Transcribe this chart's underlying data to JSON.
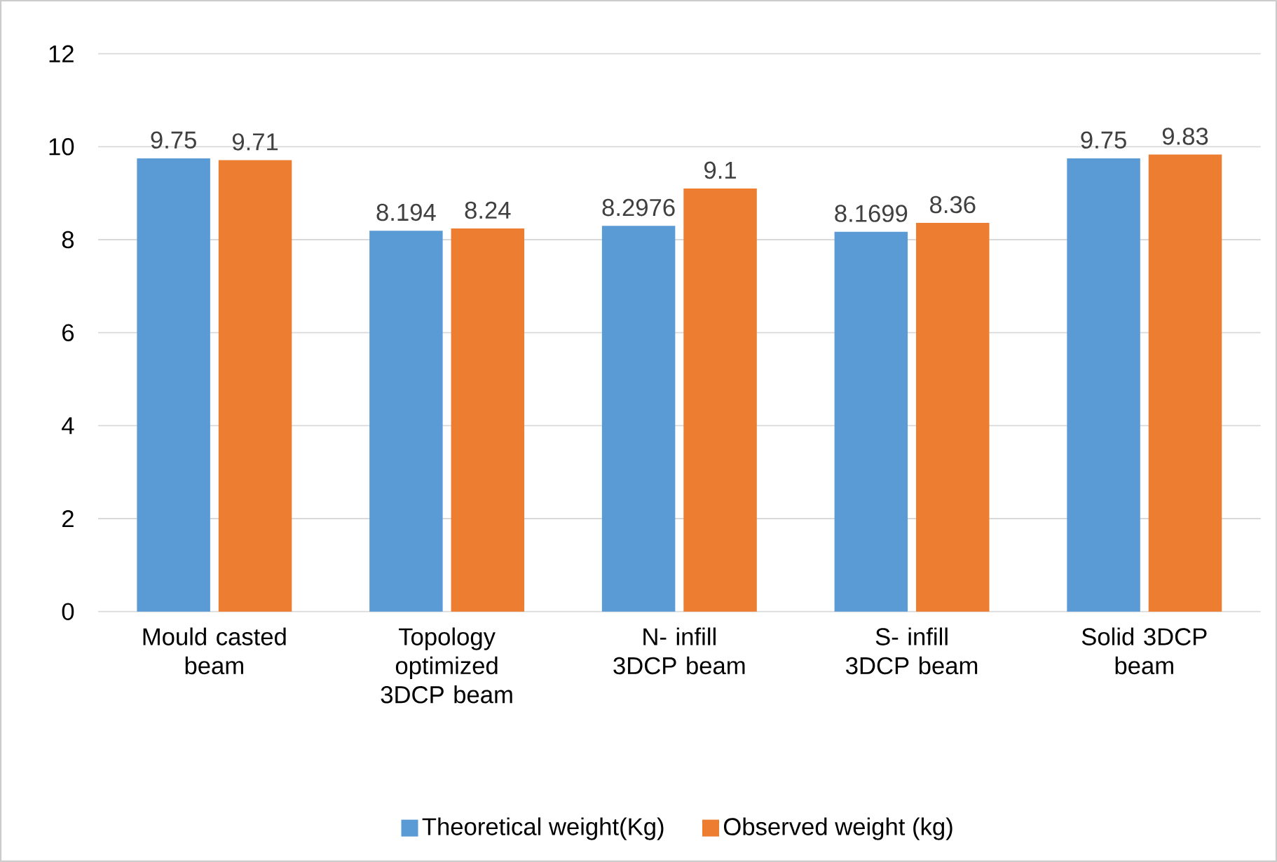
{
  "chart_data": {
    "type": "bar",
    "categories": [
      "Mould casted beam",
      "Topology optimized 3DCP beam",
      "N- infill 3DCP beam",
      "S- infill 3DCP beam",
      "Solid 3DCP beam"
    ],
    "series": [
      {
        "name": "Theoretical weight(Kg)",
        "color": "#5b9bd5",
        "values": [
          9.75,
          8.194,
          8.2976,
          8.1699,
          9.75
        ]
      },
      {
        "name": "Observed weight (kg)",
        "color": "#ed7d31",
        "values": [
          9.71,
          8.24,
          9.1,
          8.36,
          9.83
        ]
      }
    ],
    "ylim": [
      0,
      12
    ],
    "yticks": [
      0,
      2,
      4,
      6,
      8,
      10,
      12
    ],
    "grid": "y",
    "legend": "bottom",
    "data_labels": true
  }
}
